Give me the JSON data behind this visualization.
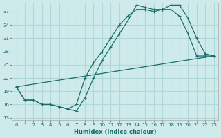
{
  "xlabel": "Humidex (Indice chaleur)",
  "bg_color": "#ceeaea",
  "grid_color": "#b0d8d8",
  "line_color": "#1a6b6b",
  "xlim": [
    -0.5,
    23.5
  ],
  "ylim": [
    12.5,
    39
  ],
  "yticks": [
    13,
    16,
    19,
    22,
    25,
    28,
    31,
    34,
    37
  ],
  "xticks": [
    0,
    1,
    2,
    3,
    4,
    5,
    6,
    7,
    8,
    9,
    10,
    11,
    12,
    13,
    14,
    15,
    16,
    17,
    18,
    19,
    20,
    21,
    22,
    23
  ],
  "line1_x": [
    0,
    1,
    2,
    3,
    4,
    5,
    6,
    7,
    8,
    9,
    10,
    11,
    12,
    13,
    14,
    15,
    16,
    17,
    18,
    19,
    20,
    21,
    22,
    23
  ],
  "line1_y": [
    20,
    17,
    17,
    16,
    16,
    15.5,
    15,
    14.5,
    17.5,
    22,
    26,
    29,
    32,
    35,
    38.5,
    38.0,
    37.5,
    37.5,
    37.5,
    36,
    32,
    27,
    27,
    27
  ],
  "line2_x": [
    0,
    1,
    2,
    3,
    4,
    5,
    6,
    7,
    8,
    9,
    10,
    11,
    12,
    13,
    14,
    15,
    16,
    17,
    18,
    19,
    20,
    21,
    22,
    23
  ],
  "line2_y": [
    20,
    17,
    17,
    16,
    16,
    15.5,
    15,
    16,
    22,
    25.5,
    28,
    31,
    34,
    36,
    37.5,
    37.5,
    37.0,
    37.5,
    38.5,
    38.5,
    35.5,
    31,
    27.5,
    27
  ],
  "line3_x": [
    0,
    23
  ],
  "line3_y": [
    20,
    27
  ]
}
